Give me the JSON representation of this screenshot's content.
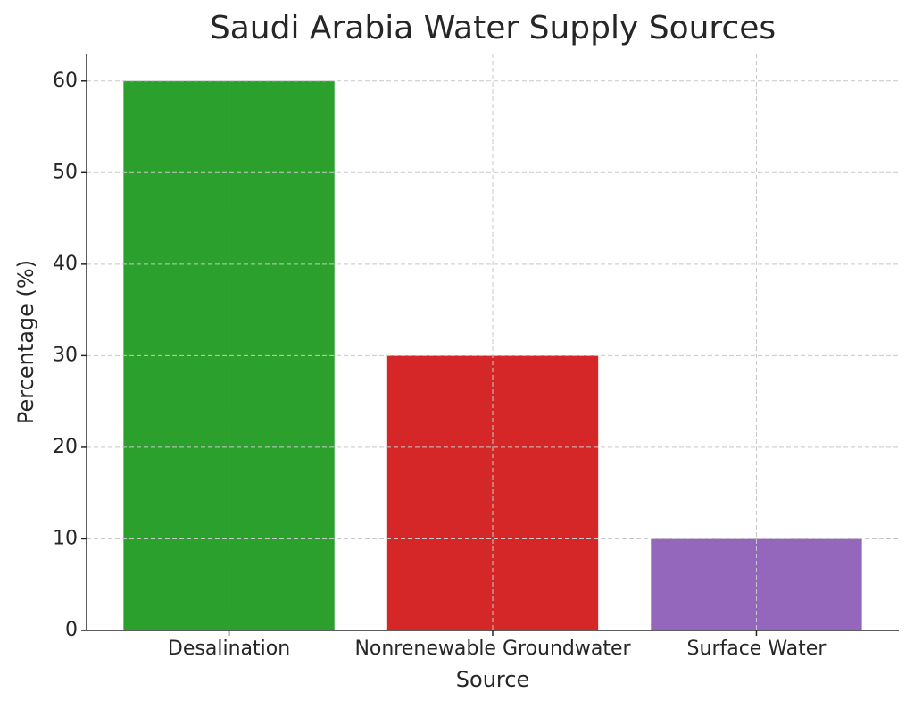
{
  "chart_data": {
    "type": "bar",
    "title": "Saudi Arabia Water Supply Sources",
    "x_label": "Source",
    "y_label": "Percentage (%)",
    "categories": [
      "Desalination",
      "Nonrenewable Groundwater",
      "Surface Water"
    ],
    "values": [
      60,
      30,
      10
    ],
    "colors": [
      "#2ca02c",
      "#d62728",
      "#9467bd"
    ],
    "ylim": [
      0,
      63
    ],
    "yticks": [
      0,
      10,
      20,
      30,
      40,
      50,
      60
    ],
    "grid": true
  }
}
